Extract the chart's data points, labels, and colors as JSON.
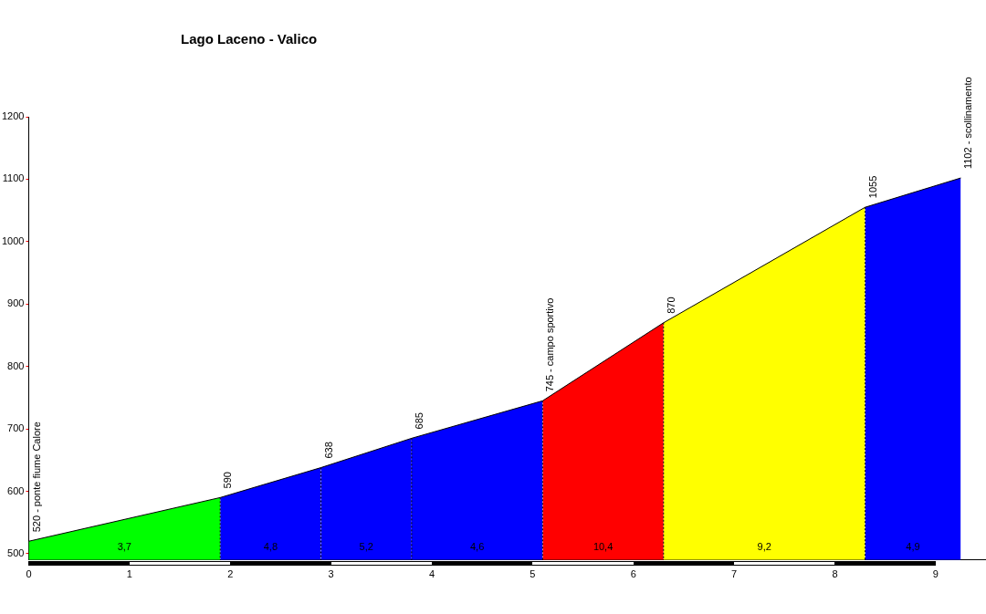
{
  "chart_data": {
    "type": "area",
    "title": "Lago Laceno - Valico",
    "series": [
      {
        "x": [
          0,
          1.9
        ],
        "values": [
          520,
          590
        ],
        "color": "#00ff00"
      },
      {
        "x": [
          1.9,
          2.9
        ],
        "values": [
          590,
          638
        ],
        "color": "#0000ff"
      },
      {
        "x": [
          2.9,
          3.8
        ],
        "values": [
          638,
          685
        ],
        "color": "#0000ff"
      },
      {
        "x": [
          3.8,
          5.1
        ],
        "values": [
          685,
          745
        ],
        "color": "#0000ff"
      },
      {
        "x": [
          5.1,
          6.3
        ],
        "values": [
          745,
          870
        ],
        "color": "#ff0000"
      },
      {
        "x": [
          6.3,
          8.3
        ],
        "values": [
          870,
          1055
        ],
        "color": "#ffff00"
      },
      {
        "x": [
          8.3,
          9.25
        ],
        "values": [
          1055,
          1102
        ],
        "color": "#0000ff"
      }
    ],
    "xlim": [
      0,
      9.5
    ],
    "xticks": [
      0,
      1,
      2,
      3,
      4,
      5,
      6,
      7,
      8,
      9
    ],
    "ylim": [
      490,
      1200
    ],
    "yticks": [
      500,
      600,
      700,
      800,
      900,
      1000,
      1100,
      1200
    ],
    "grid": false,
    "legend": false,
    "annotations": [
      {
        "text": "520 - ponte fiume Calore",
        "x": 0,
        "y": 520
      },
      {
        "text": "590",
        "x": 1.9,
        "y": 590
      },
      {
        "text": "638",
        "x": 2.9,
        "y": 638
      },
      {
        "text": "685",
        "x": 3.8,
        "y": 685
      },
      {
        "text": "745 - campo sportivo",
        "x": 5.1,
        "y": 745
      },
      {
        "text": "870",
        "x": 6.3,
        "y": 870
      },
      {
        "text": "1055",
        "x": 8.3,
        "y": 1055
      },
      {
        "text": "1102 - scollinamento",
        "x": 9.25,
        "y": 1102
      },
      "3,7",
      "4,8",
      "5,2",
      "4,6",
      "10,4",
      "9,2",
      "4,9"
    ]
  }
}
